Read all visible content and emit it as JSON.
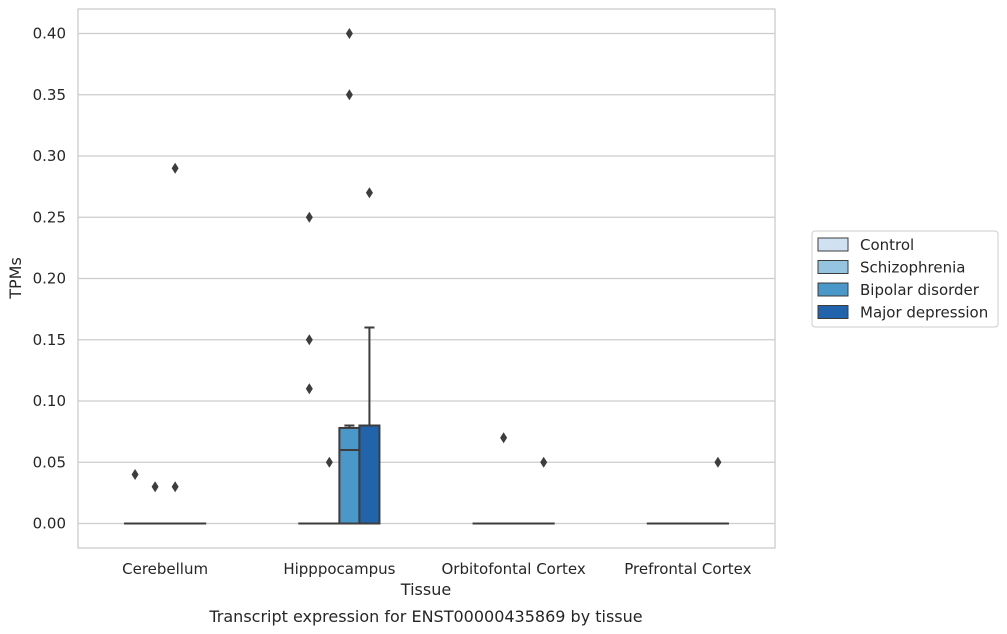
{
  "chart_data": {
    "type": "box",
    "title": "",
    "caption": "Transcript expression for ENST00000435869 by tissue",
    "xlabel": "Tissue",
    "ylabel": "TPMs",
    "ylim": [
      -0.02,
      0.42
    ],
    "yticks": [
      "0.00",
      "0.05",
      "0.10",
      "0.15",
      "0.20",
      "0.25",
      "0.30",
      "0.35",
      "0.40"
    ],
    "ytick_values": [
      0.0,
      0.05,
      0.1,
      0.15,
      0.2,
      0.25,
      0.3,
      0.35,
      0.4
    ],
    "grid": true,
    "legend_position": "right",
    "categories": [
      "Cerebellum",
      "Hipppocampus",
      "Orbitofontal Cortex",
      "Prefrontal Cortex"
    ],
    "series": [
      {
        "name": "Control",
        "color": "#d0e1f2",
        "boxes": [
          {
            "q1": 0,
            "median": 0,
            "q3": 0,
            "whisker_low": 0,
            "whisker_high": 0,
            "outliers": [
              0.04
            ]
          },
          {
            "q1": 0,
            "median": 0,
            "q3": 0,
            "whisker_low": 0,
            "whisker_high": 0,
            "outliers": [
              0.25,
              0.15,
              0.11
            ]
          },
          {
            "q1": 0,
            "median": 0,
            "q3": 0,
            "whisker_low": 0,
            "whisker_high": 0,
            "outliers": []
          },
          {
            "q1": 0,
            "median": 0,
            "q3": 0,
            "whisker_low": 0,
            "whisker_high": 0,
            "outliers": []
          }
        ]
      },
      {
        "name": "Schizophrenia",
        "color": "#94c4df",
        "boxes": [
          {
            "q1": 0,
            "median": 0,
            "q3": 0,
            "whisker_low": 0,
            "whisker_high": 0,
            "outliers": [
              0.03
            ]
          },
          {
            "q1": 0,
            "median": 0,
            "q3": 0,
            "whisker_low": 0,
            "whisker_high": 0,
            "outliers": [
              0.05
            ]
          },
          {
            "q1": 0,
            "median": 0,
            "q3": 0,
            "whisker_low": 0,
            "whisker_high": 0,
            "outliers": [
              0.07
            ]
          },
          {
            "q1": 0,
            "median": 0,
            "q3": 0,
            "whisker_low": 0,
            "whisker_high": 0,
            "outliers": []
          }
        ]
      },
      {
        "name": "Bipolar disorder",
        "color": "#4a98c9",
        "boxes": [
          {
            "q1": 0,
            "median": 0,
            "q3": 0,
            "whisker_low": 0,
            "whisker_high": 0,
            "outliers": [
              0.29,
              0.03
            ]
          },
          {
            "q1": 0,
            "median": 0.06,
            "q3": 0.078,
            "whisker_low": 0,
            "whisker_high": 0.08,
            "outliers": [
              0.4,
              0.35
            ]
          },
          {
            "q1": 0,
            "median": 0,
            "q3": 0,
            "whisker_low": 0,
            "whisker_high": 0,
            "outliers": []
          },
          {
            "q1": 0,
            "median": 0,
            "q3": 0,
            "whisker_low": 0,
            "whisker_high": 0,
            "outliers": []
          }
        ]
      },
      {
        "name": "Major depression",
        "color": "#2164ab",
        "boxes": [
          {
            "q1": 0,
            "median": 0,
            "q3": 0,
            "whisker_low": 0,
            "whisker_high": 0,
            "outliers": []
          },
          {
            "q1": 0,
            "median": 0,
            "q3": 0.08,
            "whisker_low": 0,
            "whisker_high": 0.16,
            "outliers": [
              0.27
            ]
          },
          {
            "q1": 0,
            "median": 0,
            "q3": 0,
            "whisker_low": 0,
            "whisker_high": 0,
            "outliers": [
              0.05
            ]
          },
          {
            "q1": 0,
            "median": 0,
            "q3": 0,
            "whisker_low": 0,
            "whisker_high": 0,
            "outliers": [
              0.05
            ]
          }
        ]
      }
    ]
  }
}
